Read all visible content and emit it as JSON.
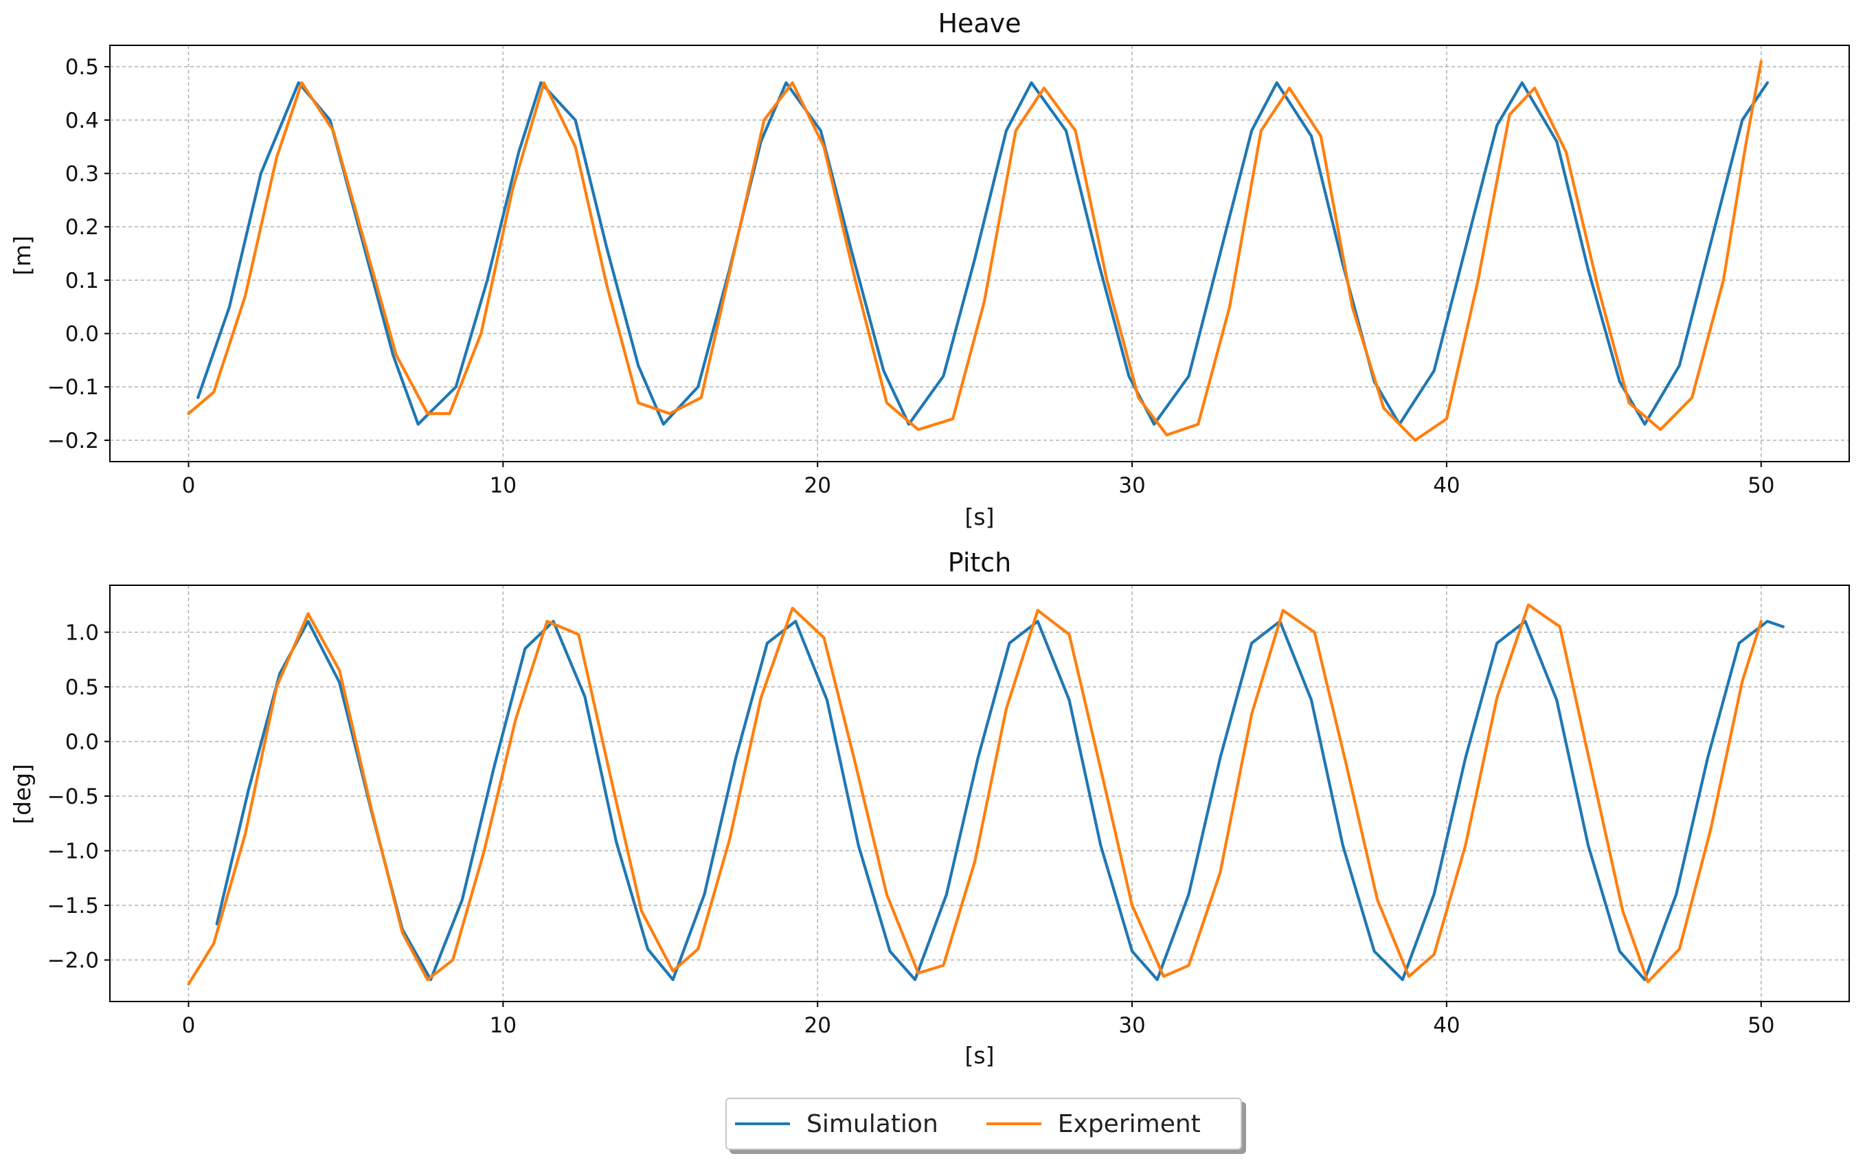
{
  "colors": {
    "simulation": "#1f77b4",
    "experiment": "#ff7f0e"
  },
  "legend": {
    "placement": "bottom-center",
    "items": [
      "Simulation",
      "Experiment"
    ]
  },
  "chart_data": [
    {
      "type": "line",
      "title": "Heave",
      "xlabel": "[s]",
      "ylabel": "[m]",
      "xlim": [
        -2.5,
        52.8
      ],
      "ylim": [
        -0.24,
        0.54
      ],
      "xticks": [
        0,
        10,
        20,
        30,
        40,
        50
      ],
      "yticks": [
        -0.2,
        -0.1,
        0.0,
        0.1,
        0.2,
        0.3,
        0.4,
        0.5
      ],
      "grid": true,
      "series": [
        {
          "name": "Simulation",
          "color": "#1f77b4",
          "x": [
            0.3,
            1.3,
            2.3,
            3.5,
            4.5,
            5.5,
            6.5,
            7.3,
            8.5,
            9.5,
            10.5,
            11.2,
            12.3,
            13.3,
            14.3,
            15.1,
            16.2,
            17.2,
            18.2,
            19.0,
            20.1,
            21.1,
            22.1,
            22.9,
            24.0,
            25.0,
            26.0,
            26.8,
            27.9,
            28.9,
            29.9,
            30.7,
            31.8,
            32.8,
            33.8,
            34.6,
            35.7,
            36.7,
            37.7,
            38.5,
            39.6,
            40.6,
            41.6,
            42.4,
            43.5,
            44.5,
            45.5,
            46.3,
            47.4,
            48.4,
            49.4,
            50.2
          ],
          "y": [
            -0.12,
            0.05,
            0.3,
            0.47,
            0.4,
            0.18,
            -0.04,
            -0.17,
            -0.1,
            0.1,
            0.34,
            0.47,
            0.4,
            0.16,
            -0.06,
            -0.17,
            -0.1,
            0.12,
            0.36,
            0.47,
            0.38,
            0.15,
            -0.07,
            -0.17,
            -0.08,
            0.14,
            0.38,
            0.47,
            0.38,
            0.14,
            -0.08,
            -0.17,
            -0.08,
            0.15,
            0.38,
            0.47,
            0.37,
            0.13,
            -0.09,
            -0.17,
            -0.07,
            0.16,
            0.39,
            0.47,
            0.36,
            0.12,
            -0.09,
            -0.17,
            -0.06,
            0.17,
            0.4,
            0.47
          ]
        },
        {
          "name": "Experiment",
          "color": "#ff7f0e",
          "x": [
            0.0,
            0.8,
            1.8,
            2.8,
            3.6,
            4.6,
            5.6,
            6.6,
            7.6,
            8.3,
            9.3,
            10.3,
            11.3,
            12.3,
            13.3,
            14.3,
            15.3,
            16.3,
            17.3,
            18.3,
            19.2,
            20.2,
            21.2,
            22.2,
            23.2,
            24.3,
            25.3,
            26.3,
            27.2,
            28.2,
            29.2,
            30.2,
            31.1,
            32.1,
            33.1,
            34.1,
            35.0,
            36.0,
            37.0,
            38.0,
            39.0,
            40.0,
            41.0,
            42.0,
            42.8,
            43.8,
            44.8,
            45.8,
            46.8,
            47.8,
            48.8,
            49.5,
            50.0
          ],
          "y": [
            -0.15,
            -0.11,
            0.07,
            0.33,
            0.47,
            0.38,
            0.17,
            -0.04,
            -0.15,
            -0.15,
            0.0,
            0.27,
            0.47,
            0.35,
            0.09,
            -0.13,
            -0.15,
            -0.12,
            0.14,
            0.4,
            0.47,
            0.35,
            0.1,
            -0.13,
            -0.18,
            -0.16,
            0.06,
            0.38,
            0.46,
            0.38,
            0.1,
            -0.12,
            -0.19,
            -0.17,
            0.05,
            0.38,
            0.46,
            0.37,
            0.05,
            -0.14,
            -0.2,
            -0.16,
            0.1,
            0.41,
            0.46,
            0.34,
            0.09,
            -0.13,
            -0.18,
            -0.12,
            0.1,
            0.35,
            0.51
          ]
        }
      ]
    },
    {
      "type": "line",
      "title": "Pitch",
      "xlabel": "[s]",
      "ylabel": "[deg]",
      "xlim": [
        -2.5,
        52.8
      ],
      "ylim": [
        -2.38,
        1.43
      ],
      "xticks": [
        0,
        10,
        20,
        30,
        40,
        50
      ],
      "yticks": [
        -2.0,
        -1.5,
        -1.0,
        -0.5,
        0.0,
        0.5,
        1.0
      ],
      "grid": true,
      "series": [
        {
          "name": "Simulation",
          "color": "#1f77b4",
          "x": [
            0.9,
            1.9,
            2.9,
            3.8,
            4.8,
            5.8,
            6.8,
            7.7,
            8.7,
            9.7,
            10.7,
            11.6,
            12.6,
            13.6,
            14.6,
            15.4,
            16.4,
            17.4,
            18.4,
            19.3,
            20.3,
            21.3,
            22.3,
            23.1,
            24.1,
            25.1,
            26.1,
            27.0,
            28.0,
            29.0,
            30.0,
            30.8,
            31.8,
            32.8,
            33.8,
            34.7,
            35.7,
            36.7,
            37.7,
            38.6,
            39.6,
            40.6,
            41.6,
            42.5,
            43.5,
            44.5,
            45.5,
            46.3,
            47.3,
            48.3,
            49.3,
            50.2,
            50.7
          ],
          "y": [
            -1.67,
            -0.45,
            0.62,
            1.1,
            0.54,
            -0.62,
            -1.72,
            -2.18,
            -1.45,
            -0.25,
            0.85,
            1.1,
            0.41,
            -0.92,
            -1.9,
            -2.18,
            -1.4,
            -0.15,
            0.9,
            1.1,
            0.38,
            -0.95,
            -1.92,
            -2.18,
            -1.4,
            -0.15,
            0.9,
            1.1,
            0.38,
            -0.95,
            -1.92,
            -2.18,
            -1.4,
            -0.15,
            0.9,
            1.1,
            0.38,
            -0.95,
            -1.92,
            -2.18,
            -1.4,
            -0.15,
            0.9,
            1.1,
            0.38,
            -0.95,
            -1.92,
            -2.18,
            -1.4,
            -0.15,
            0.9,
            1.1,
            1.05
          ]
        },
        {
          "name": "Experiment",
          "color": "#ff7f0e",
          "x": [
            0.0,
            0.8,
            1.8,
            2.8,
            3.8,
            4.8,
            5.8,
            6.8,
            7.6,
            8.4,
            9.4,
            10.4,
            11.4,
            12.4,
            13.4,
            14.4,
            15.4,
            16.2,
            17.2,
            18.2,
            19.2,
            20.2,
            21.2,
            22.2,
            23.2,
            24.0,
            25.0,
            26.0,
            27.0,
            28.0,
            29.0,
            30.0,
            31.0,
            31.8,
            32.8,
            33.8,
            34.8,
            35.8,
            36.8,
            37.8,
            38.8,
            39.6,
            40.6,
            41.6,
            42.6,
            43.6,
            44.6,
            45.6,
            46.4,
            47.4,
            48.4,
            49.4,
            50.0
          ],
          "y": [
            -2.22,
            -1.85,
            -0.85,
            0.5,
            1.17,
            0.65,
            -0.6,
            -1.75,
            -2.18,
            -2.0,
            -1.0,
            0.2,
            1.1,
            0.98,
            -0.3,
            -1.55,
            -2.1,
            -1.9,
            -0.9,
            0.4,
            1.22,
            0.95,
            -0.2,
            -1.4,
            -2.12,
            -2.05,
            -1.1,
            0.3,
            1.2,
            0.98,
            -0.25,
            -1.5,
            -2.15,
            -2.05,
            -1.2,
            0.25,
            1.2,
            1.0,
            -0.2,
            -1.45,
            -2.15,
            -1.95,
            -0.95,
            0.4,
            1.25,
            1.05,
            -0.25,
            -1.55,
            -2.2,
            -1.9,
            -0.8,
            0.55,
            1.1
          ]
        }
      ]
    }
  ]
}
